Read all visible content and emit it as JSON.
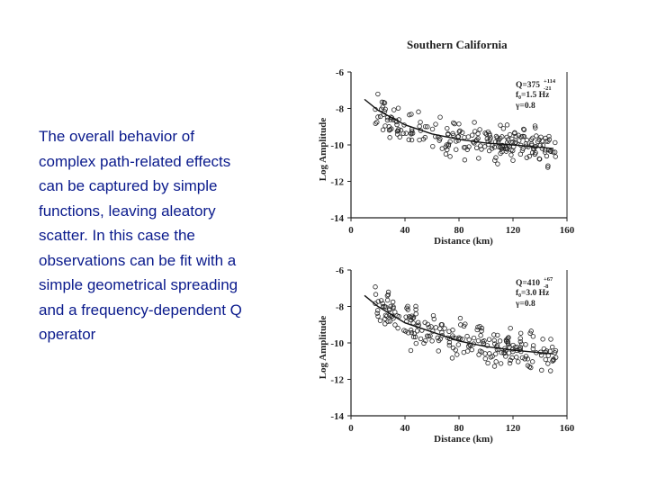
{
  "body_text": "The overall behavior of\ncomplex path-related effects\ncan be captured by simple\nfunctions, leaving aleatory\nscatter.   In this case the\nobservations can be fit with a\nsimple geometrical spreading\nand a frequency-dependent Q\noperator",
  "figure_title": "Southern California",
  "colors": {
    "text": "#0a1a8c",
    "ink": "#222222"
  },
  "chart_data": [
    {
      "type": "scatter",
      "title": "Southern California",
      "xlabel": "Distance (km)",
      "ylabel": "Log Amplitude",
      "xlim": [
        0,
        160
      ],
      "ylim": [
        -14,
        -6
      ],
      "x_ticks": [
        "0",
        "40",
        "80",
        "120",
        "160"
      ],
      "y_ticks": [
        "-6",
        "-8",
        "-10",
        "-12",
        "-14"
      ],
      "annotation": {
        "q": "Q=375",
        "q_sup": "+114",
        "q_sub": "-21",
        "f0": "f₀=1.5 Hz",
        "gamma": "γ=0.8"
      },
      "fit_line": {
        "x": [
          10,
          20,
          40,
          60,
          80,
          100,
          120,
          150
        ],
        "y": [
          -7.5,
          -8.1,
          -8.9,
          -9.4,
          -9.7,
          -9.9,
          -10.0,
          -10.2
        ]
      },
      "trend": {
        "x_range": [
          18,
          152
        ],
        "seed": 7,
        "scatter": 0.55,
        "count": 230
      }
    },
    {
      "type": "scatter",
      "title": "",
      "xlabel": "Distance (km)",
      "ylabel": "Log Amplitude",
      "xlim": [
        0,
        160
      ],
      "ylim": [
        -14,
        -6
      ],
      "x_ticks": [
        "0",
        "40",
        "80",
        "120",
        "160"
      ],
      "y_ticks": [
        "-6",
        "-8",
        "-10",
        "-12",
        "-14"
      ],
      "annotation": {
        "q": "Q=410",
        "q_sup": "+67",
        "q_sub": "-8",
        "f0": "f₀=3.0 Hz",
        "gamma": "γ=0.8"
      },
      "fit_line": {
        "x": [
          10,
          20,
          40,
          60,
          80,
          100,
          120,
          150
        ],
        "y": [
          -7.4,
          -8.0,
          -8.9,
          -9.4,
          -9.9,
          -10.2,
          -10.4,
          -10.6
        ]
      },
      "trend": {
        "x_range": [
          18,
          152
        ],
        "seed": 13,
        "scatter": 0.6,
        "count": 230
      }
    }
  ]
}
